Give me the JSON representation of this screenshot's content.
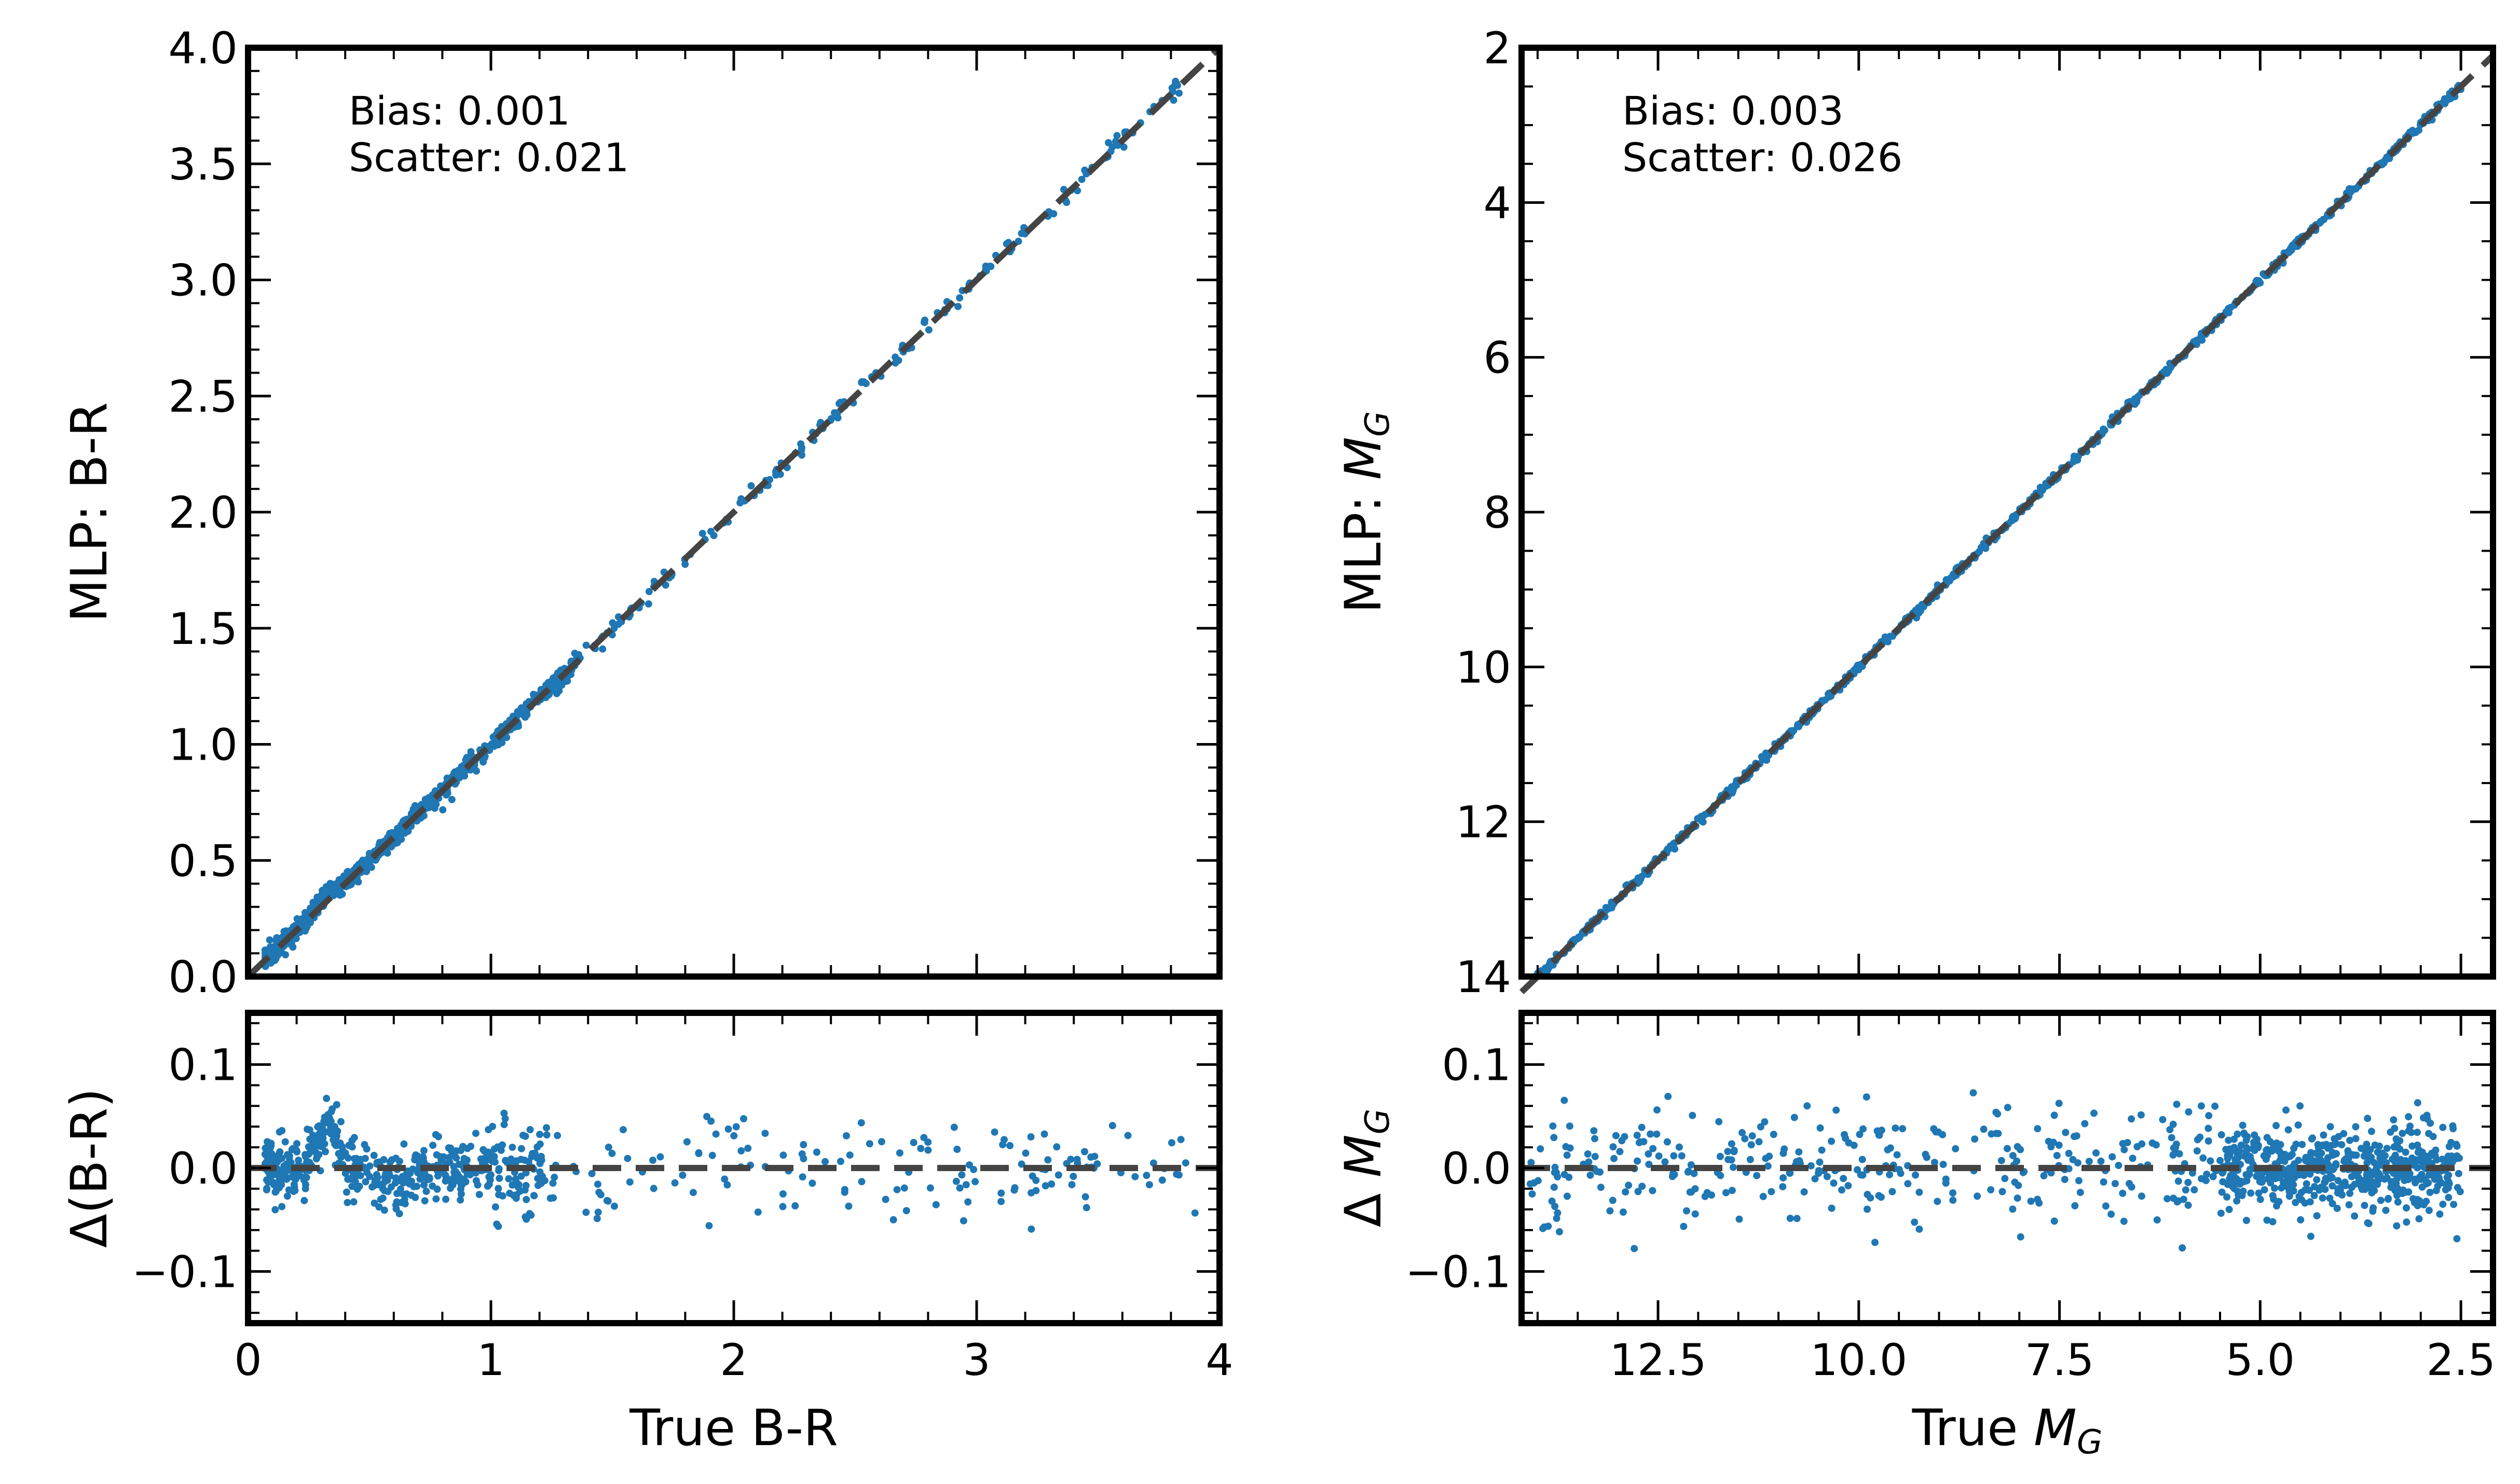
{
  "colors": {
    "points": "#1f77b4",
    "reference_line": "#444444",
    "axes": "#000000"
  },
  "chart_data": [
    {
      "type": "scatter",
      "panel": "left-main",
      "xlabel": "",
      "ylabel": "MLP: B-R",
      "xlim": [
        0,
        4
      ],
      "ylim": [
        0,
        4
      ],
      "yticks": [
        "0.0",
        "0.5",
        "1.0",
        "1.5",
        "2.0",
        "2.5",
        "3.0",
        "3.5",
        "4.0"
      ],
      "annotation": [
        "Bias: 0.001",
        "Scatter: 0.021"
      ],
      "reference_line": {
        "from": [
          0,
          0
        ],
        "to": [
          4,
          4
        ],
        "style": "dashed"
      },
      "approx_points": 1000,
      "point_density": "dense for x < 1.0, sparse toward x = 3.9"
    },
    {
      "type": "scatter",
      "panel": "left-residual",
      "xlabel": "True B-R",
      "ylabel": "Δ(B-R)",
      "xlim": [
        0,
        4
      ],
      "ylim": [
        -0.15,
        0.15
      ],
      "xticks": [
        "0",
        "1",
        "2",
        "3",
        "4"
      ],
      "yticks": [
        "−0.1",
        "0.0",
        "0.1"
      ],
      "reference_line": {
        "y": 0,
        "style": "dashed"
      },
      "approx_points": 700,
      "features": "bump up to ~0.06 near x=0.33; typical spread ±0.03; outliers to -0.09"
    },
    {
      "type": "scatter",
      "panel": "right-main",
      "xlabel": "",
      "ylabel": "MLP: M_G",
      "xlim": [
        14.2,
        2.1
      ],
      "ylim": [
        14,
        2
      ],
      "yticks": [
        "2",
        "4",
        "6",
        "8",
        "10",
        "12",
        "14"
      ],
      "annotation": [
        "Bias: 0.003",
        "Scatter: 0.026"
      ],
      "reference_line": {
        "from": [
          14.2,
          14.2
        ],
        "to": [
          2.1,
          2.1
        ],
        "style": "dashed"
      },
      "approx_points": 900,
      "x_extent_of_points": [
        14.0,
        2.5
      ]
    },
    {
      "type": "scatter",
      "panel": "right-residual",
      "xlabel": "True M_G",
      "ylabel": "Δ M_G",
      "xlim": [
        14.2,
        2.1
      ],
      "ylim": [
        -0.15,
        0.15
      ],
      "xticks": [
        "12.5",
        "10.0",
        "7.5",
        "5.0",
        "2.5"
      ],
      "yticks": [
        "−0.1",
        "0.0",
        "0.1"
      ],
      "reference_line": {
        "y": 0,
        "style": "dashed"
      },
      "approx_points": 900,
      "features": "spread ±0.04, denser near 2.5–5.0, outliers to ±0.09"
    }
  ]
}
